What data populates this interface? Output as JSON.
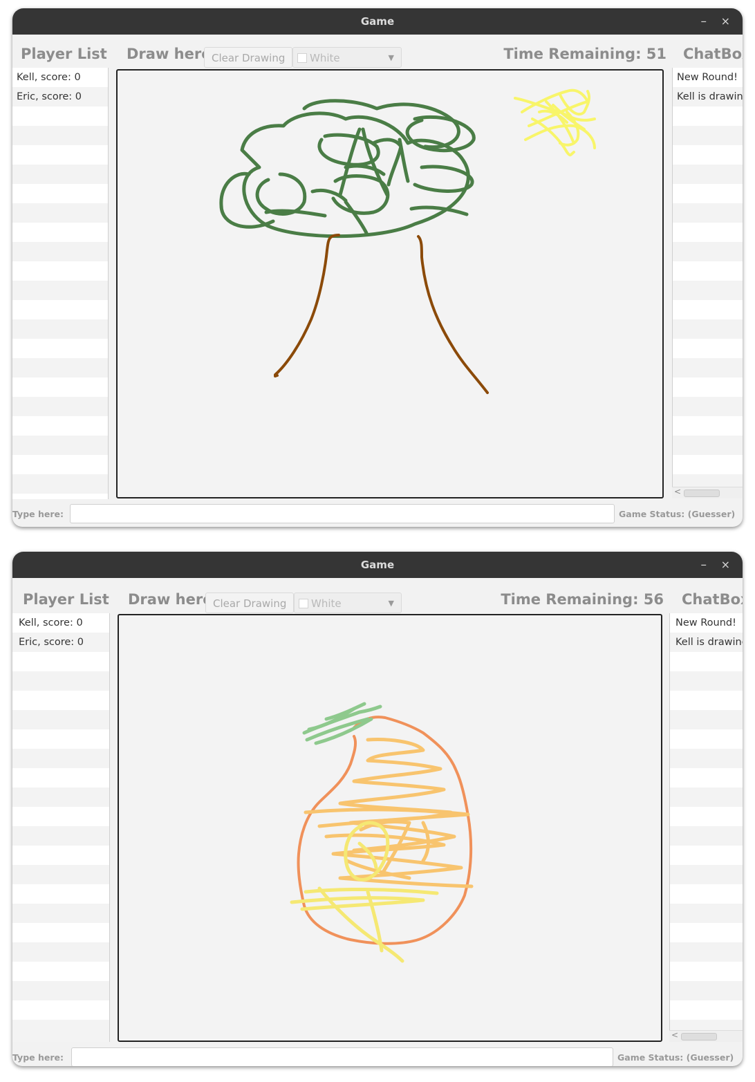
{
  "windows": [
    {
      "title": "Game",
      "player_list": {
        "title": "Player List",
        "players": [
          "Kell, score: 0",
          "Eric, score: 0"
        ]
      },
      "draw": {
        "title": "Draw here",
        "clear_button": "Clear Drawing",
        "color_select": "White",
        "time_remaining": "Time Remaining: 51"
      },
      "chat": {
        "title": "ChatBox",
        "messages": [
          "New Round!",
          "Kell is drawing"
        ]
      },
      "footer": {
        "type_label": "Type here:",
        "input_value": "",
        "status": "Game Status: (Guesser)"
      },
      "drawing_colors": [
        "#4a7d46",
        "#8b4a09",
        "#f8f56a"
      ]
    },
    {
      "title": "Game",
      "player_list": {
        "title": "Player List",
        "players": [
          "Kell, score: 0",
          "Eric, score: 0"
        ]
      },
      "draw": {
        "title": "Draw here",
        "clear_button": "Clear Drawing",
        "color_select": "White",
        "time_remaining": "Time Remaining: 56"
      },
      "chat": {
        "title": "ChatBox",
        "messages": [
          "New Round!",
          "Kell is drawing"
        ]
      },
      "footer": {
        "type_label": "Type here:",
        "input_value": "",
        "status": "Game Status: (Guesser)"
      },
      "drawing_colors": [
        "#f0915a",
        "#f8c46e",
        "#f5e873",
        "#8ec98d"
      ]
    }
  ],
  "title_controls": {
    "minimize": "–",
    "close": "×"
  },
  "icons": {
    "dropdown": "chevron-down-icon",
    "scroll_left": "chevron-left-icon"
  }
}
